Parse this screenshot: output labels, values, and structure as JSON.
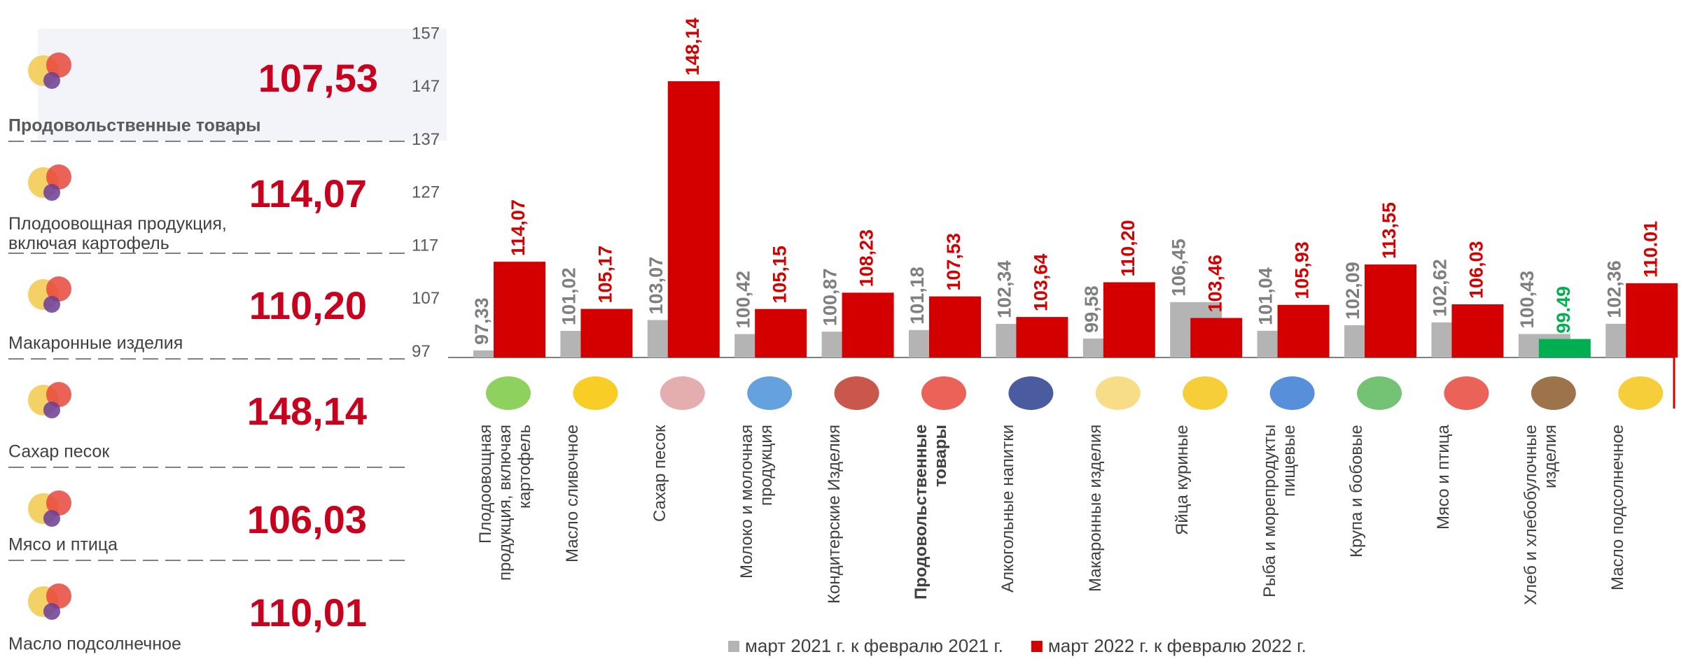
{
  "summary": {
    "items": [
      {
        "label": "Продовольственные товары",
        "value": "107,53"
      },
      {
        "label": "Плодоовощная продукция, включая картофель",
        "value": "114,07"
      },
      {
        "label": "Макаронные изделия",
        "value": "110,20"
      },
      {
        "label": "Сахар песок",
        "value": "148,14"
      },
      {
        "label": "Мясо и птица",
        "value": "106,03"
      },
      {
        "label": "Масло подсолнечное",
        "value": "110,01"
      }
    ]
  },
  "chart_data": {
    "type": "bar",
    "categories": [
      "Плодоовощная продукция, включая картофель",
      "Масло сливочное",
      "Сахар песок",
      "Молоко и молочная продукция",
      "Кондитерские Изделия",
      "Продовольственные товары",
      "Алкогольные напитки",
      "Макаронные изделия",
      "Яйца куриные",
      "Рыба и морепродукты пищевые",
      "Крупа и бобовые",
      "Мясо и птица",
      "Хлеб и хлебобулочные изделия",
      "Масло подсолнечное"
    ],
    "series": [
      {
        "name": "март 2021 г. к февралю 2021 г.",
        "color": "#b4b4b4",
        "label_color": "#7f7f7f",
        "values": [
          97.33,
          101.02,
          103.07,
          100.42,
          100.87,
          101.18,
          102.34,
          99.58,
          106.45,
          101.04,
          102.09,
          102.62,
          100.43,
          102.36
        ],
        "value_labels": [
          "97,33",
          "101,02",
          "103,07",
          "100,42",
          "100,87",
          "101,18",
          "102,34",
          "99,58",
          "106,45",
          "101,04",
          "102,09",
          "102,62",
          "100,43",
          "102,36"
        ]
      },
      {
        "name": "март 2022 г. к февралю 2022 г.",
        "color": "#d40000",
        "colors": [
          "#d40000",
          "#d40000",
          "#d40000",
          "#d40000",
          "#d40000",
          "#d40000",
          "#d40000",
          "#d40000",
          "#d40000",
          "#d40000",
          "#d40000",
          "#d40000",
          "#00b050",
          "#d40000"
        ],
        "values": [
          114.07,
          105.17,
          148.14,
          105.15,
          108.23,
          107.53,
          103.64,
          110.2,
          103.46,
          105.93,
          113.55,
          106.03,
          99.49,
          110.01
        ],
        "value_labels": [
          "114,07",
          "105,17",
          "148,14",
          "105,15",
          "108,23",
          "107,53",
          "103,64",
          "110,20",
          "103,46",
          "105,93",
          "113,55",
          "106,03",
          "99.49",
          "110.01"
        ]
      }
    ],
    "ylim": [
      96,
      157
    ],
    "yticks": [
      97,
      107,
      117,
      127,
      137,
      147,
      157
    ]
  }
}
